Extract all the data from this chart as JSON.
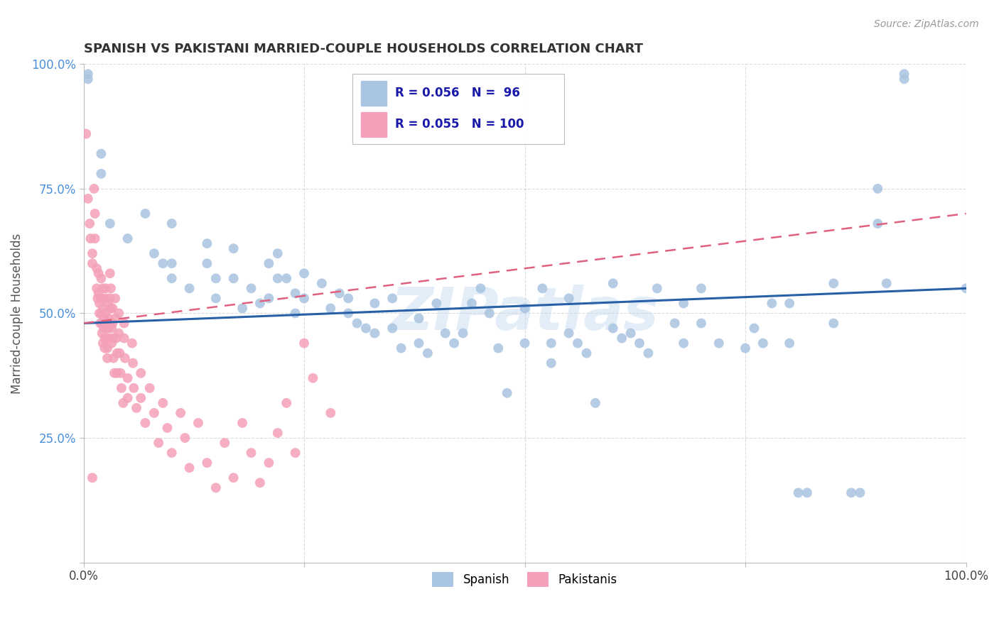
{
  "title": "SPANISH VS PAKISTANI MARRIED-COUPLE HOUSEHOLDS CORRELATION CHART",
  "source": "Source: ZipAtlas.com",
  "ylabel": "Married-couple Households",
  "xlim": [
    0,
    1
  ],
  "ylim": [
    0,
    1
  ],
  "xticks": [
    0,
    0.25,
    0.5,
    0.75,
    1.0
  ],
  "yticks": [
    0,
    0.25,
    0.5,
    0.75,
    1.0
  ],
  "xticklabels": [
    "0.0%",
    "",
    "",
    "",
    "100.0%"
  ],
  "yticklabels": [
    "",
    "25.0%",
    "50.0%",
    "75.0%",
    "100.0%"
  ],
  "spanish_color": "#a8c4e0",
  "pakistani_color": "#f4a0b8",
  "trend_spanish_color": "#2860a8",
  "trend_pakistani_color": "#e06080",
  "background_color": "#ffffff",
  "grid_color": "#cccccc",
  "watermark": "ZIPatlas",
  "legend_label_spanish": "Spanish",
  "legend_label_pakistani": "Pakistanis",
  "legend_r_spanish": "R = 0.056",
  "legend_n_spanish": "N =  96",
  "legend_r_pakistani": "R = 0.055",
  "legend_n_pakistani": "N = 100",
  "tick_color": "#4a90d9",
  "title_color": "#333333",
  "source_color": "#999999",
  "spanish_points": [
    [
      0.005,
      0.98
    ],
    [
      0.005,
      0.97
    ],
    [
      0.02,
      0.82
    ],
    [
      0.02,
      0.78
    ],
    [
      0.03,
      0.68
    ],
    [
      0.05,
      0.65
    ],
    [
      0.07,
      0.7
    ],
    [
      0.08,
      0.62
    ],
    [
      0.09,
      0.6
    ],
    [
      0.1,
      0.68
    ],
    [
      0.1,
      0.6
    ],
    [
      0.1,
      0.57
    ],
    [
      0.12,
      0.55
    ],
    [
      0.14,
      0.64
    ],
    [
      0.14,
      0.6
    ],
    [
      0.15,
      0.57
    ],
    [
      0.15,
      0.53
    ],
    [
      0.17,
      0.63
    ],
    [
      0.17,
      0.57
    ],
    [
      0.18,
      0.51
    ],
    [
      0.19,
      0.55
    ],
    [
      0.2,
      0.52
    ],
    [
      0.21,
      0.6
    ],
    [
      0.21,
      0.53
    ],
    [
      0.22,
      0.62
    ],
    [
      0.22,
      0.57
    ],
    [
      0.23,
      0.57
    ],
    [
      0.24,
      0.54
    ],
    [
      0.24,
      0.5
    ],
    [
      0.25,
      0.58
    ],
    [
      0.25,
      0.53
    ],
    [
      0.27,
      0.56
    ],
    [
      0.28,
      0.51
    ],
    [
      0.29,
      0.54
    ],
    [
      0.3,
      0.5
    ],
    [
      0.3,
      0.53
    ],
    [
      0.31,
      0.48
    ],
    [
      0.32,
      0.47
    ],
    [
      0.33,
      0.52
    ],
    [
      0.33,
      0.46
    ],
    [
      0.35,
      0.53
    ],
    [
      0.35,
      0.47
    ],
    [
      0.36,
      0.43
    ],
    [
      0.38,
      0.49
    ],
    [
      0.38,
      0.44
    ],
    [
      0.39,
      0.42
    ],
    [
      0.4,
      0.52
    ],
    [
      0.41,
      0.46
    ],
    [
      0.42,
      0.44
    ],
    [
      0.43,
      0.46
    ],
    [
      0.44,
      0.52
    ],
    [
      0.45,
      0.55
    ],
    [
      0.46,
      0.5
    ],
    [
      0.47,
      0.43
    ],
    [
      0.48,
      0.34
    ],
    [
      0.5,
      0.51
    ],
    [
      0.5,
      0.44
    ],
    [
      0.52,
      0.55
    ],
    [
      0.53,
      0.44
    ],
    [
      0.53,
      0.4
    ],
    [
      0.55,
      0.53
    ],
    [
      0.55,
      0.46
    ],
    [
      0.56,
      0.44
    ],
    [
      0.57,
      0.42
    ],
    [
      0.58,
      0.32
    ],
    [
      0.6,
      0.56
    ],
    [
      0.6,
      0.47
    ],
    [
      0.61,
      0.45
    ],
    [
      0.62,
      0.46
    ],
    [
      0.63,
      0.44
    ],
    [
      0.64,
      0.42
    ],
    [
      0.65,
      0.55
    ],
    [
      0.67,
      0.48
    ],
    [
      0.68,
      0.52
    ],
    [
      0.68,
      0.44
    ],
    [
      0.7,
      0.55
    ],
    [
      0.7,
      0.48
    ],
    [
      0.72,
      0.44
    ],
    [
      0.75,
      0.43
    ],
    [
      0.76,
      0.47
    ],
    [
      0.77,
      0.44
    ],
    [
      0.78,
      0.52
    ],
    [
      0.8,
      0.52
    ],
    [
      0.8,
      0.44
    ],
    [
      0.81,
      0.14
    ],
    [
      0.82,
      0.14
    ],
    [
      0.85,
      0.56
    ],
    [
      0.85,
      0.48
    ],
    [
      0.87,
      0.14
    ],
    [
      0.88,
      0.14
    ],
    [
      0.9,
      0.75
    ],
    [
      0.9,
      0.68
    ],
    [
      0.91,
      0.56
    ],
    [
      0.93,
      0.98
    ],
    [
      0.93,
      0.97
    ],
    [
      1.0,
      0.55
    ]
  ],
  "pakistani_points": [
    [
      0.003,
      0.86
    ],
    [
      0.005,
      0.73
    ],
    [
      0.007,
      0.68
    ],
    [
      0.008,
      0.65
    ],
    [
      0.01,
      0.62
    ],
    [
      0.01,
      0.6
    ],
    [
      0.012,
      0.75
    ],
    [
      0.013,
      0.7
    ],
    [
      0.013,
      0.65
    ],
    [
      0.015,
      0.59
    ],
    [
      0.015,
      0.55
    ],
    [
      0.016,
      0.53
    ],
    [
      0.017,
      0.58
    ],
    [
      0.017,
      0.54
    ],
    [
      0.018,
      0.52
    ],
    [
      0.018,
      0.5
    ],
    [
      0.019,
      0.48
    ],
    [
      0.02,
      0.57
    ],
    [
      0.02,
      0.53
    ],
    [
      0.02,
      0.5
    ],
    [
      0.021,
      0.48
    ],
    [
      0.021,
      0.46
    ],
    [
      0.022,
      0.44
    ],
    [
      0.022,
      0.55
    ],
    [
      0.022,
      0.51
    ],
    [
      0.023,
      0.49
    ],
    [
      0.023,
      0.47
    ],
    [
      0.024,
      0.45
    ],
    [
      0.024,
      0.43
    ],
    [
      0.025,
      0.55
    ],
    [
      0.025,
      0.53
    ],
    [
      0.025,
      0.5
    ],
    [
      0.026,
      0.47
    ],
    [
      0.026,
      0.45
    ],
    [
      0.027,
      0.43
    ],
    [
      0.027,
      0.41
    ],
    [
      0.028,
      0.52
    ],
    [
      0.028,
      0.49
    ],
    [
      0.028,
      0.47
    ],
    [
      0.029,
      0.45
    ],
    [
      0.03,
      0.58
    ],
    [
      0.03,
      0.53
    ],
    [
      0.03,
      0.48
    ],
    [
      0.031,
      0.55
    ],
    [
      0.031,
      0.51
    ],
    [
      0.032,
      0.47
    ],
    [
      0.032,
      0.44
    ],
    [
      0.033,
      0.51
    ],
    [
      0.033,
      0.48
    ],
    [
      0.034,
      0.45
    ],
    [
      0.034,
      0.41
    ],
    [
      0.035,
      0.38
    ],
    [
      0.036,
      0.53
    ],
    [
      0.036,
      0.49
    ],
    [
      0.037,
      0.45
    ],
    [
      0.038,
      0.42
    ],
    [
      0.038,
      0.38
    ],
    [
      0.04,
      0.5
    ],
    [
      0.04,
      0.46
    ],
    [
      0.041,
      0.42
    ],
    [
      0.042,
      0.38
    ],
    [
      0.043,
      0.35
    ],
    [
      0.045,
      0.32
    ],
    [
      0.046,
      0.48
    ],
    [
      0.046,
      0.45
    ],
    [
      0.047,
      0.41
    ],
    [
      0.05,
      0.37
    ],
    [
      0.05,
      0.33
    ],
    [
      0.055,
      0.44
    ],
    [
      0.056,
      0.4
    ],
    [
      0.057,
      0.35
    ],
    [
      0.06,
      0.31
    ],
    [
      0.065,
      0.38
    ],
    [
      0.065,
      0.33
    ],
    [
      0.07,
      0.28
    ],
    [
      0.075,
      0.35
    ],
    [
      0.08,
      0.3
    ],
    [
      0.085,
      0.24
    ],
    [
      0.09,
      0.32
    ],
    [
      0.095,
      0.27
    ],
    [
      0.1,
      0.22
    ],
    [
      0.11,
      0.3
    ],
    [
      0.115,
      0.25
    ],
    [
      0.12,
      0.19
    ],
    [
      0.13,
      0.28
    ],
    [
      0.14,
      0.2
    ],
    [
      0.15,
      0.15
    ],
    [
      0.16,
      0.24
    ],
    [
      0.17,
      0.17
    ],
    [
      0.18,
      0.28
    ],
    [
      0.19,
      0.22
    ],
    [
      0.2,
      0.16
    ],
    [
      0.21,
      0.2
    ],
    [
      0.22,
      0.26
    ],
    [
      0.23,
      0.32
    ],
    [
      0.24,
      0.22
    ],
    [
      0.25,
      0.44
    ],
    [
      0.26,
      0.37
    ],
    [
      0.28,
      0.3
    ],
    [
      0.01,
      0.17
    ]
  ]
}
